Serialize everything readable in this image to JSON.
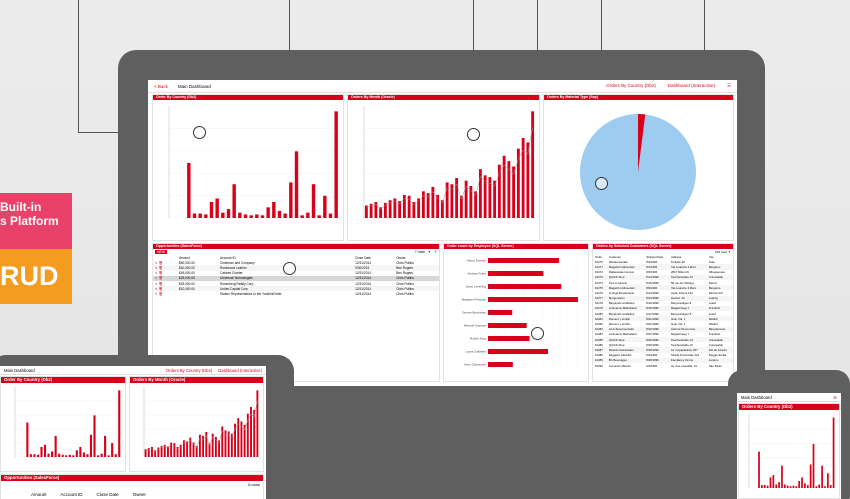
{
  "dashboard": {
    "back_label": "< Back",
    "title": "Main Dashboard",
    "header_link_1": "Orders By Country (Db2)",
    "header_link_2": "Dashboard (Interactive)"
  },
  "panels": {
    "orders_country": "Order By Country (Db2)",
    "orders_month": "Orders By Month (Oracle)",
    "orders_material": "Orders By Material Type (Sap)",
    "opportunities": "Opportunities (SalesForce)",
    "employee": "Order count by Employee (SQL Server)",
    "customer": "Orders by Selected Customers (SQL Server)"
  },
  "opportunities_table": {
    "headers": [
      "Amount",
      "Account ID",
      "Close Date",
      "Owner"
    ],
    "rows": [
      [
        "$50,000.00",
        "Chairman and Company",
        "12/31/2014",
        "Chris Pullins"
      ],
      [
        "$40,000.00",
        "Rosewood Leather",
        "9/30/2015",
        "Ben Rogers"
      ],
      [
        "$49,000.00",
        "Cabinet Charter",
        "12/31/2014",
        "Ben Rogers"
      ],
      [
        "$25,000.00",
        "Universal Technologies",
        "12/31/2014",
        "Chris Pullins"
      ],
      [
        "$25,000.00",
        "Rosenberg Realty Corp",
        "12/31/2014",
        "Chris Pullins"
      ],
      [
        "$10,000.00",
        "United Capital Corp",
        "12/31/2014",
        "Chris Pullins"
      ],
      [
        "",
        "Station Representative to the YouthfulOrder",
        "12/31/2014",
        "Chris Pullins"
      ]
    ],
    "rows_label": "7 rows"
  },
  "customer_table": {
    "headers": [
      "Order",
      "Customer",
      "Shipped Date",
      "Address",
      "City"
    ],
    "rows": [
      [
        "10270",
        "Wartian Herkku",
        "8/2/1996",
        "Torikatu 38",
        "Oulu"
      ],
      [
        "10271",
        "Magazzini Alimentari",
        "8/1/1996",
        "Via Ludovico il Moro",
        "Bergamo"
      ],
      [
        "10272",
        "Rattlesnake Canyon",
        "8/6/1996",
        "2817 Milton Dr.",
        "Albuquerque"
      ],
      [
        "10273",
        "QUICK-Stop",
        "8/12/1996",
        "Taucherstraße 10",
        "Cunewalde"
      ],
      [
        "10274",
        "Vins et alcools",
        "8/16/1996",
        "59 rue de l'Abbaye",
        "Reims"
      ],
      [
        "10275",
        "Magazzini Alimentari",
        "8/9/1996",
        "Via Ludovico il Moro",
        "Bergamo"
      ],
      [
        "10276",
        "Tortuga Restaurante",
        "8/14/1996",
        "Avda. Azteca 123",
        "México D.F."
      ],
      [
        "10277",
        "Morgenstern",
        "8/13/1996",
        "Heerstr. 22",
        "Leipzig"
      ],
      [
        "10278",
        "Berglunds snabbköp",
        "8/16/1996",
        "Berguvsvägen 8",
        "Luleå"
      ],
      [
        "10279",
        "Lehmanns Marktstand",
        "8/16/1996",
        "Magazinweg 7",
        "Frankfurt"
      ],
      [
        "10280",
        "Berglunds snabbköp",
        "9/12/1996",
        "Berguvsvägen 8",
        "Luleå"
      ],
      [
        "10281",
        "Romero y tomillo",
        "8/21/1996",
        "Gran Vía, 1",
        "Madrid"
      ],
      [
        "10282",
        "Romero y tomillo",
        "8/21/1996",
        "Gran Vía, 1",
        "Madrid"
      ],
      [
        "10283",
        "LILA-Supermercado",
        "8/23/1996",
        "Carrera 52 con Ave.",
        "Barquisimeto"
      ],
      [
        "10284",
        "Lehmanns Marktstand",
        "8/27/1996",
        "Magazinweg 7",
        "Frankfurt"
      ],
      [
        "10285",
        "QUICK-Stop",
        "8/26/1996",
        "Taucherstraße 10",
        "Cunewalde"
      ],
      [
        "10286",
        "QUICK-Stop",
        "8/30/1996",
        "Taucherstraße 10",
        "Cunewalde"
      ],
      [
        "10287",
        "Ricardo Adocicados",
        "8/28/1996",
        "Av. Copacabana, 267",
        "Rio de Janeiro"
      ],
      [
        "10288",
        "Reggiani Caseifici",
        "9/3/1996",
        "Strada Provinciale 124",
        "Reggio Emilia"
      ],
      [
        "10289",
        "B's Beverages",
        "8/28/1996",
        "Fauntleroy Circus",
        "London"
      ],
      [
        "10290",
        "Comércio Mineiro",
        "9/3/1996",
        "Av. dos Lusíadas, 23",
        "Sao Paulo"
      ]
    ],
    "rows_label": "100 rows"
  },
  "promo": {
    "line1": "Built-in",
    "line2": "s Platform",
    "badge": "RUD"
  },
  "tablet": {
    "title": "Main Dashboard",
    "link1": "Orders By Country (Db2)",
    "link2": "Dashboard (Interactive)",
    "panel1": "Order By Country (Db2)",
    "panel2": "Orders By Month (Oracle)",
    "panel3": "Opportunities (SalesForce)",
    "rows_label": "6 rows",
    "table_headers": [
      "Amount",
      "Account ID",
      "Close Date",
      "Owner"
    ]
  },
  "phone": {
    "title": "Main Dashboard",
    "panel": "Orders By Country (Db2)"
  },
  "colors": {
    "accent": "#d9001b",
    "pink": "#e8426a",
    "orange": "#f39c1f",
    "pie": "#9ecbf0"
  },
  "chart_data": [
    {
      "type": "bar",
      "title": "Order By Country (Db2)",
      "values": [
        0,
        0,
        0,
        62,
        5,
        5,
        4,
        18,
        22,
        6,
        10,
        38,
        6,
        4,
        3,
        4,
        3,
        12,
        18,
        8,
        5,
        40,
        75,
        3,
        6,
        38,
        3,
        25,
        5,
        120
      ]
    },
    {
      "type": "bar",
      "title": "Orders By Month (Oracle)",
      "values": [
        14,
        16,
        18,
        12,
        17,
        20,
        22,
        19,
        26,
        25,
        18,
        22,
        30,
        28,
        35,
        26,
        20,
        40,
        38,
        45,
        25,
        42,
        36,
        30,
        55,
        48,
        46,
        42,
        60,
        70,
        64,
        58,
        78,
        90,
        85,
        120
      ]
    },
    {
      "type": "pie",
      "title": "Orders By Material Type (Sap)",
      "values": [
        0.98,
        0.02
      ]
    },
    {
      "type": "bar",
      "title": "Order count by Employee (SQL Server)",
      "categories": [
        "Nancy Davolio",
        "Andrew Fuller",
        "Janet Leverling",
        "Margaret Peacock",
        "Steven Buchanan",
        "Michael Suyama",
        "Robert King",
        "Laura Callahan",
        "Anne Dodsworth"
      ],
      "values": [
        123,
        96,
        127,
        156,
        42,
        67,
        72,
        104,
        43
      ]
    }
  ]
}
